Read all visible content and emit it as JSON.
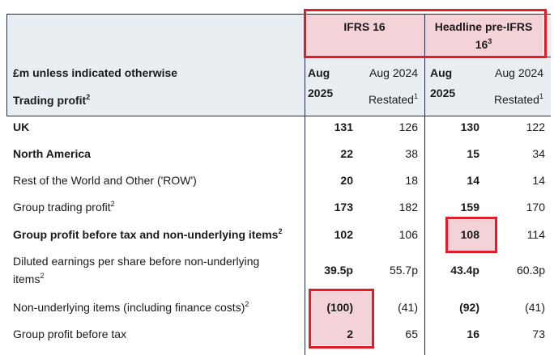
{
  "header": {
    "ifrs16": "IFRS 16",
    "headline": "Headline pre-IFRS 16",
    "headline_sup": "3",
    "row_label": "£m unless indicated otherwise",
    "trading_profit": "Trading profit",
    "trading_profit_sup": "2",
    "aug2025_line1": "Aug",
    "aug2025_line2": "2025",
    "aug2024_line1": "Aug 2024",
    "aug2024_line2": "Restated",
    "restated_sup": "1"
  },
  "rows": [
    {
      "label": "UK",
      "sup": "",
      "bold": true,
      "v": [
        "131",
        "126",
        "130",
        "122"
      ]
    },
    {
      "label": "North America",
      "sup": "",
      "bold": true,
      "v": [
        "22",
        "38",
        "15",
        "34"
      ]
    },
    {
      "label": "Rest of the World and Other ('ROW')",
      "sup": "",
      "bold": false,
      "v": [
        "20",
        "18",
        "14",
        "14"
      ]
    },
    {
      "label": "Group trading profit",
      "sup": "2",
      "bold": false,
      "v": [
        "173",
        "182",
        "159",
        "170"
      ]
    },
    {
      "label": "Group profit before tax and non-underlying items",
      "sup": "2",
      "bold": true,
      "v": [
        "102",
        "106",
        "108",
        "114"
      ]
    },
    {
      "label": "Diluted earnings per share before non-underlying",
      "label2": "items",
      "sup": "2",
      "bold": false,
      "v": [
        "39.5p",
        "55.7p",
        "43.4p",
        "60.3p"
      ]
    },
    {
      "label": "Non-underlying items (including finance costs)",
      "sup": "2",
      "bold": false,
      "v": [
        "(100)",
        "(41)",
        "(92)",
        "(41)"
      ]
    },
    {
      "label": "Group profit before tax",
      "sup": "",
      "bold": false,
      "v": [
        "2",
        "65",
        "16",
        "73"
      ]
    }
  ],
  "colors": {
    "highlight": "#f3d3d8",
    "annotation": "#e11d2a",
    "header_bg": "#e9eef3",
    "rule": "#1f2a44"
  }
}
